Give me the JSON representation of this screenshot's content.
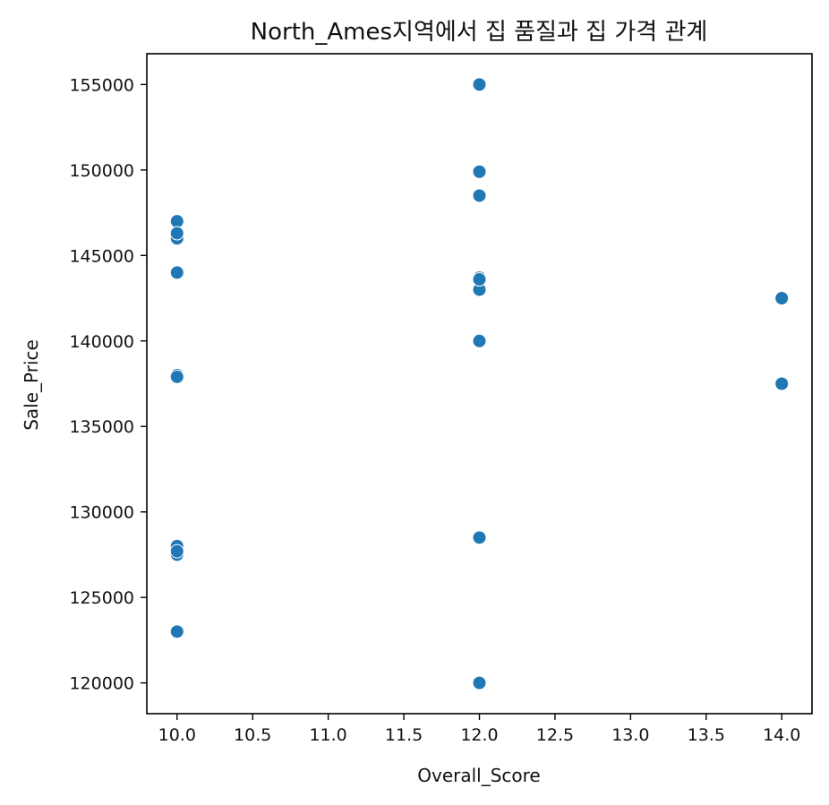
{
  "chart_data": {
    "type": "scatter",
    "title": "North_Ames지역에서 집 품질과 집 가격 관계",
    "xlabel": "Overall_Score",
    "ylabel": "Sale_Price",
    "xlim": [
      9.8,
      14.2
    ],
    "ylim": [
      118200,
      156800
    ],
    "xticks": [
      10.0,
      10.5,
      11.0,
      11.5,
      12.0,
      12.5,
      13.0,
      13.5,
      14.0
    ],
    "xtick_labels": [
      "10.0",
      "10.5",
      "11.0",
      "11.5",
      "12.0",
      "12.5",
      "13.0",
      "13.5",
      "14.0"
    ],
    "yticks": [
      120000,
      125000,
      130000,
      135000,
      140000,
      145000,
      150000,
      155000
    ],
    "ytick_labels": [
      "120000",
      "125000",
      "130000",
      "135000",
      "140000",
      "145000",
      "150000",
      "155000"
    ],
    "grid": false,
    "marker_color": "#1f77b4",
    "series": [
      {
        "x": [
          10,
          10,
          10,
          10,
          10,
          10,
          10,
          10,
          10,
          10,
          12,
          12,
          12,
          12,
          12,
          12,
          12,
          12,
          12,
          14,
          14
        ],
        "y": [
          147000,
          146000,
          146300,
          144000,
          138000,
          137900,
          128000,
          127500,
          123000,
          127700,
          155000,
          149900,
          148500,
          143700,
          143000,
          140000,
          128500,
          120000,
          143600,
          142500,
          137500
        ]
      }
    ]
  }
}
